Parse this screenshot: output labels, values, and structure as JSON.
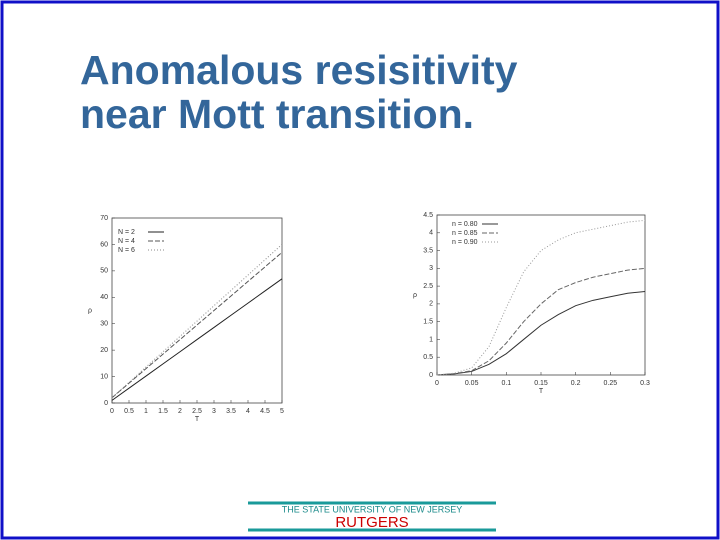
{
  "slide_title": [
    "Anomalous resisitivity",
    "near Mott transition."
  ],
  "footer": {
    "university": "THE STATE UNIVERSITY OF NEW JERSEY",
    "name": "RUTGERS"
  },
  "chart_data": [
    {
      "type": "line",
      "x_label": "T",
      "y_label": "ρ",
      "x": [
        0,
        0.5,
        1,
        1.5,
        2,
        2.5,
        3,
        3.5,
        4,
        4.5,
        5
      ],
      "series": [
        {
          "name": "N = 2",
          "color": "#222222",
          "values": [
            1,
            5.6,
            10.2,
            14.8,
            19.4,
            24,
            28.6,
            33.2,
            37.8,
            42.4,
            47
          ]
        },
        {
          "name": "N = 4",
          "color": "#555555",
          "values": [
            2,
            7.5,
            13,
            18.5,
            24,
            29.5,
            35,
            40.5,
            46,
            51.5,
            57
          ]
        },
        {
          "name": "N = 6",
          "color": "#888888",
          "values": [
            2,
            7.8,
            13.6,
            19.4,
            25.2,
            31,
            36.8,
            42.6,
            48.4,
            54.2,
            60
          ]
        }
      ],
      "xlim": [
        0,
        5
      ],
      "xticks": [
        0,
        0.5,
        1,
        1.5,
        2,
        2.5,
        3,
        3.5,
        4,
        4.5,
        5
      ],
      "ylim": [
        0,
        70
      ],
      "yticks": [
        0,
        10,
        20,
        30,
        40,
        50,
        60,
        70
      ],
      "grid": false
    },
    {
      "type": "line",
      "x_label": "T",
      "y_label": "ρ",
      "x": [
        0,
        0.025,
        0.05,
        0.075,
        0.1,
        0.125,
        0.15,
        0.175,
        0.2,
        0.225,
        0.25,
        0.275,
        0.3
      ],
      "series": [
        {
          "name": "n = 0.80",
          "color": "#333333",
          "values": [
            0,
            0.03,
            0.1,
            0.3,
            0.6,
            1.0,
            1.4,
            1.7,
            1.95,
            2.1,
            2.2,
            2.3,
            2.35
          ]
        },
        {
          "name": "n = 0.85",
          "color": "#666666",
          "values": [
            0,
            0.04,
            0.12,
            0.4,
            0.9,
            1.5,
            2.0,
            2.4,
            2.6,
            2.75,
            2.85,
            2.95,
            3.0
          ]
        },
        {
          "name": "n = 0.90",
          "color": "#999999",
          "values": [
            0,
            0.05,
            0.2,
            0.8,
            1.9,
            2.9,
            3.5,
            3.8,
            4.0,
            4.1,
            4.2,
            4.3,
            4.35
          ]
        }
      ],
      "xlim": [
        0,
        0.3
      ],
      "xticks": [
        0,
        0.05,
        0.1,
        0.15,
        0.2,
        0.25,
        0.3
      ],
      "ylim": [
        0,
        4.5
      ],
      "yticks": [
        0,
        0.5,
        1,
        1.5,
        2,
        2.5,
        3,
        3.5,
        4,
        4.5
      ],
      "grid": false
    }
  ]
}
